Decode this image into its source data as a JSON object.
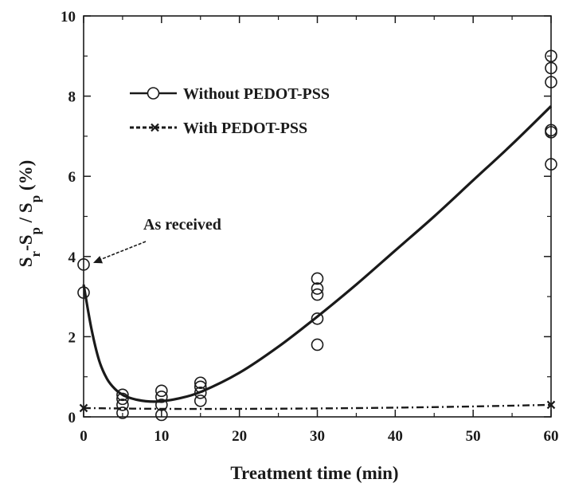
{
  "chart_data": {
    "type": "scatter",
    "title": "",
    "xlabel": "Treatment time (min)",
    "ylabel_parts": [
      "S",
      "r",
      "-S",
      "p",
      " / S",
      "p",
      " (%)"
    ],
    "xlim": [
      0,
      60
    ],
    "ylim": [
      0,
      10
    ],
    "xticks": [
      0,
      10,
      20,
      30,
      40,
      50,
      60
    ],
    "xtick_labels": [
      "0",
      "10",
      "20",
      "30",
      "40",
      "50",
      "60"
    ],
    "yticks": [
      0,
      2,
      4,
      6,
      8,
      10
    ],
    "ytick_labels": [
      "0",
      "2",
      "4",
      "6",
      "8",
      "10"
    ],
    "grid": false,
    "legend_position": "upper-left",
    "series": [
      {
        "name": "Without PEDOT-PSS",
        "marker": "open-circle",
        "line_style": "solid",
        "points": [
          [
            0,
            3.8
          ],
          [
            0,
            3.1
          ],
          [
            5,
            0.55
          ],
          [
            5,
            0.45
          ],
          [
            5,
            0.3
          ],
          [
            5,
            0.1
          ],
          [
            10,
            0.65
          ],
          [
            10,
            0.5
          ],
          [
            10,
            0.3
          ],
          [
            10,
            0.05
          ],
          [
            15,
            0.85
          ],
          [
            15,
            0.75
          ],
          [
            15,
            0.6
          ],
          [
            15,
            0.4
          ],
          [
            30,
            3.45
          ],
          [
            30,
            3.2
          ],
          [
            30,
            3.05
          ],
          [
            30,
            2.45
          ],
          [
            30,
            1.8
          ],
          [
            60,
            9.0
          ],
          [
            60,
            8.7
          ],
          [
            60,
            8.35
          ],
          [
            60,
            7.15
          ],
          [
            60,
            7.1
          ],
          [
            60,
            6.3
          ]
        ],
        "fit_curve": [
          [
            0,
            3.3
          ],
          [
            1,
            2.2
          ],
          [
            2,
            1.4
          ],
          [
            3,
            0.95
          ],
          [
            4,
            0.7
          ],
          [
            5,
            0.55
          ],
          [
            6,
            0.47
          ],
          [
            7,
            0.42
          ],
          [
            8,
            0.39
          ],
          [
            9,
            0.38
          ],
          [
            10,
            0.39
          ],
          [
            12,
            0.45
          ],
          [
            15,
            0.62
          ],
          [
            20,
            1.1
          ],
          [
            25,
            1.75
          ],
          [
            30,
            2.5
          ],
          [
            35,
            3.3
          ],
          [
            40,
            4.15
          ],
          [
            45,
            5.0
          ],
          [
            50,
            5.9
          ],
          [
            55,
            6.8
          ],
          [
            60,
            7.75
          ]
        ]
      },
      {
        "name": "With PEDOT-PSS",
        "marker": "x",
        "line_style": "dash-dot",
        "points": [
          [
            0,
            0.22
          ],
          [
            60,
            0.3
          ]
        ],
        "fit_curve": [
          [
            0,
            0.22
          ],
          [
            10,
            0.2
          ],
          [
            20,
            0.2
          ],
          [
            30,
            0.21
          ],
          [
            40,
            0.23
          ],
          [
            50,
            0.26
          ],
          [
            60,
            0.3
          ]
        ]
      }
    ],
    "annotations": [
      {
        "text": "As received",
        "target": [
          0,
          3.8
        ]
      }
    ]
  }
}
